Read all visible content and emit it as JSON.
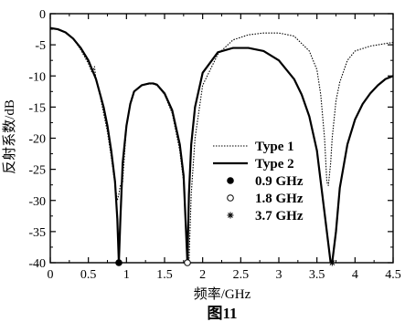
{
  "chart_data": {
    "type": "line",
    "title": "",
    "xlabel": "频率/GHz",
    "ylabel": "反射系数/dB",
    "caption": "图11",
    "xlim": [
      0,
      4.5
    ],
    "ylim": [
      -40,
      0
    ],
    "xticks": [
      0,
      0.5,
      1,
      1.5,
      2,
      2.5,
      3,
      3.5,
      4,
      4.5
    ],
    "xtick_labels": [
      "0",
      "0.5",
      "1",
      "1.5",
      "2",
      "2.5",
      "3",
      "3.5",
      "4",
      "4.5"
    ],
    "yticks": [
      0,
      -5,
      -10,
      -15,
      -20,
      -25,
      -30,
      -35,
      -40
    ],
    "ytick_labels": [
      "0",
      "-5",
      "-10",
      "-15",
      "-20",
      "-25",
      "-30",
      "-35",
      "-40"
    ],
    "grid": false,
    "legend_position": "center-right",
    "series": [
      {
        "name": "Type 1",
        "style": "dotted",
        "x": [
          0,
          0.1,
          0.2,
          0.3,
          0.4,
          0.5,
          0.55,
          0.58,
          0.6,
          0.65,
          0.7,
          0.75,
          0.8,
          0.85,
          0.88,
          0.9,
          0.92,
          0.95,
          1.0,
          1.05,
          1.1,
          1.2,
          1.3,
          1.35,
          1.4,
          1.5,
          1.6,
          1.7,
          1.75,
          1.8,
          1.82,
          1.85,
          1.9,
          2.0,
          2.2,
          2.4,
          2.6,
          2.8,
          3.0,
          3.2,
          3.4,
          3.5,
          3.55,
          3.6,
          3.63,
          3.65,
          3.68,
          3.7,
          3.75,
          3.8,
          3.9,
          4.0,
          4.2,
          4.4,
          4.5
        ],
        "y": [
          -2.3,
          -2.5,
          -3.0,
          -4.0,
          -5.8,
          -8.0,
          -9.5,
          -8.5,
          -10.5,
          -13.0,
          -16.0,
          -19.0,
          -23.0,
          -27.5,
          -30.0,
          -29.0,
          -27.5,
          -27.0,
          -18.0,
          -14.5,
          -12.5,
          -11.5,
          -11.3,
          -11.3,
          -11.5,
          -13.0,
          -16.0,
          -22.0,
          -27.0,
          -38.0,
          -40.0,
          -29.0,
          -20.0,
          -11.5,
          -6.5,
          -4.2,
          -3.4,
          -3.1,
          -3.1,
          -3.6,
          -6.0,
          -9.0,
          -13.0,
          -20.0,
          -27.0,
          -27.6,
          -24.0,
          -20.0,
          -14.0,
          -11.0,
          -7.5,
          -6.0,
          -5.2,
          -4.8,
          -4.6
        ]
      },
      {
        "name": "Type 2",
        "style": "solid",
        "x": [
          0,
          0.1,
          0.2,
          0.3,
          0.4,
          0.5,
          0.6,
          0.7,
          0.75,
          0.8,
          0.85,
          0.88,
          0.9,
          0.92,
          0.95,
          1.0,
          1.05,
          1.1,
          1.2,
          1.3,
          1.35,
          1.4,
          1.5,
          1.6,
          1.7,
          1.75,
          1.8,
          1.82,
          1.85,
          1.9,
          2.0,
          2.2,
          2.4,
          2.6,
          2.8,
          3.0,
          3.2,
          3.3,
          3.4,
          3.5,
          3.55,
          3.6,
          3.65,
          3.68,
          3.7,
          3.72,
          3.75,
          3.8,
          3.9,
          4.0,
          4.1,
          4.2,
          4.3,
          4.4,
          4.5
        ],
        "y": [
          -2.3,
          -2.5,
          -3.0,
          -4.0,
          -5.5,
          -7.5,
          -10.5,
          -15.0,
          -18.0,
          -22.0,
          -27.0,
          -33.0,
          -40.0,
          -33.0,
          -24.0,
          -18.0,
          -14.5,
          -12.5,
          -11.5,
          -11.2,
          -11.2,
          -11.4,
          -12.8,
          -15.5,
          -21.0,
          -26.0,
          -40.0,
          -29.0,
          -21.0,
          -15.0,
          -9.5,
          -6.2,
          -5.5,
          -5.5,
          -6.0,
          -7.5,
          -10.5,
          -13.0,
          -16.5,
          -22.0,
          -27.0,
          -32.0,
          -37.0,
          -40.0,
          -40.0,
          -38.0,
          -35.0,
          -28.0,
          -21.0,
          -17.0,
          -14.5,
          -12.8,
          -11.5,
          -10.5,
          -10.0
        ]
      },
      {
        "name": "0.9 GHz",
        "style": "marker-filled-circle",
        "x": [
          0.9
        ],
        "y": [
          -40
        ]
      },
      {
        "name": "1.8 GHz",
        "style": "marker-open-circle",
        "x": [
          1.8
        ],
        "y": [
          -40
        ]
      },
      {
        "name": "3.7 GHz",
        "style": "marker-star",
        "x": [
          3.7
        ],
        "y": [
          -40
        ]
      }
    ]
  }
}
